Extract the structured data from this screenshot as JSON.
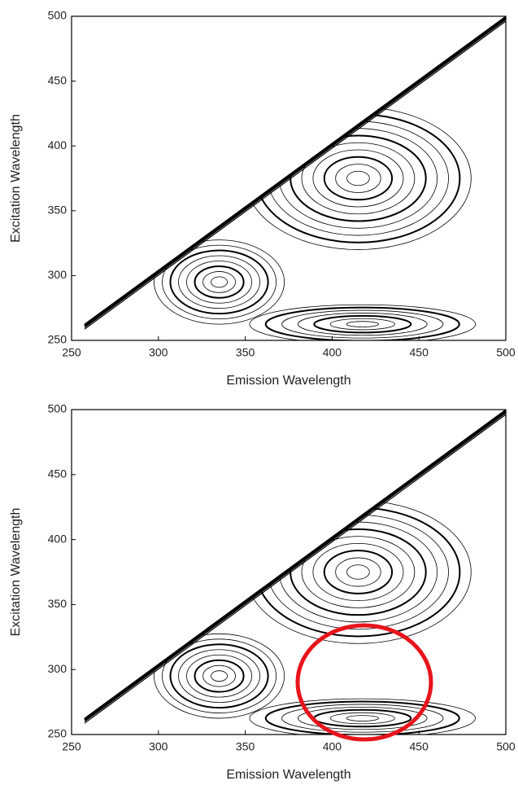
{
  "chart_data": [
    {
      "type": "contour",
      "xlabel": "Emission Wavelength",
      "ylabel": "Excitation Wavelength",
      "xlim": [
        250,
        500
      ],
      "ylim": [
        250,
        500
      ],
      "xticks": [
        250,
        300,
        350,
        400,
        450,
        500
      ],
      "yticks": [
        250,
        300,
        350,
        400,
        450,
        500
      ],
      "color": "#000000"
    },
    {
      "type": "contour",
      "xlabel": "Emission Wavelength",
      "ylabel": "Excitation Wavelength",
      "xlim": [
        250,
        500
      ],
      "ylim": [
        250,
        500
      ],
      "xticks": [
        250,
        300,
        350,
        400,
        450,
        500
      ],
      "yticks": [
        250,
        300,
        350,
        400,
        450,
        500
      ],
      "color": "#000000"
    }
  ]
}
